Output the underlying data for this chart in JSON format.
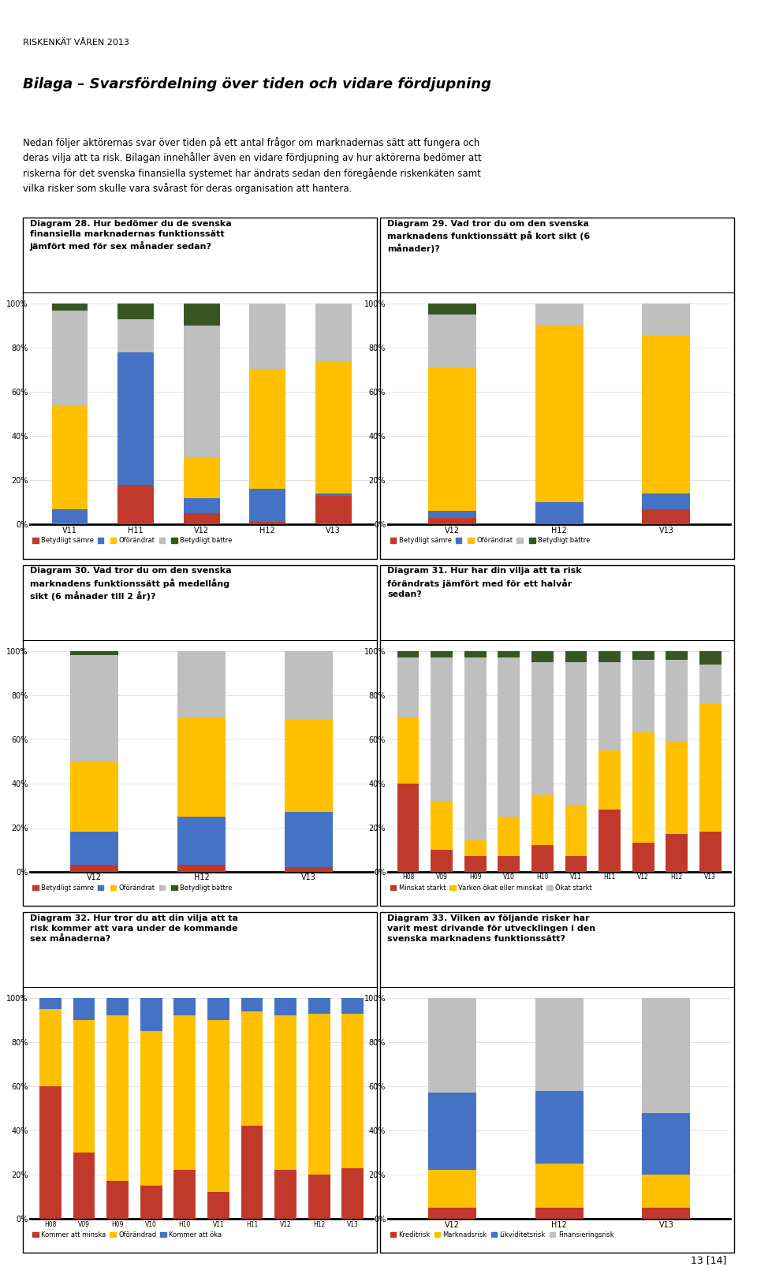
{
  "page_header": "RISKENKÄT VÅREN 2013",
  "page_title": "Bilaga – Svarsfördelning över tiden och vidare fördjupning",
  "page_intro_lines": [
    "Nedan följer aktörernas svar över tiden på ett antal frågor om marknadernas sätt att fungera och",
    "deras vilja att ta risk. Bilagan innehåller även en vidare fördjupning av hur aktörerna bedömer att",
    "riskerna för det svenska finansiella systemet har ändrats sedan den föregående riskenkäten samt",
    "vilka risker som skulle vara svårast för deras organisation att hantera."
  ],
  "page_number": "13 [14]",
  "diag28": {
    "title": "Diagram 28. Hur bedömer du de svenska\nfinansiella marknadernas funktionssätt\njämfört med för sex månader sedan?",
    "categories": [
      "V11",
      "H11",
      "V12",
      "H12",
      "V13"
    ],
    "d_red": [
      0,
      18,
      5,
      1,
      13
    ],
    "d_blue": [
      7,
      60,
      7,
      15,
      1
    ],
    "d_yell": [
      47,
      0,
      18,
      54,
      60
    ],
    "d_gray": [
      43,
      15,
      60,
      30,
      26
    ],
    "d_green": [
      3,
      7,
      10,
      0,
      0
    ],
    "legend": [
      "Betydligt sämre",
      "Oförändrat",
      "Betydligt bättre"
    ]
  },
  "diag29": {
    "title": "Diagram 29. Vad tror du om den svenska\nmarknadens funktionssätt på kort sikt (6\nmånader)?",
    "categories": [
      "V12",
      "H12",
      "V13"
    ],
    "d_red": [
      3,
      0,
      7
    ],
    "d_blue": [
      3,
      10,
      7
    ],
    "d_yell": [
      65,
      80,
      72
    ],
    "d_gray": [
      24,
      10,
      14
    ],
    "d_green": [
      5,
      0,
      0
    ],
    "legend": [
      "Betydligt sämre",
      "Oförändrat",
      "Betydligt bättre"
    ]
  },
  "diag30": {
    "title": "Diagram 30. Vad tror du om den svenska\nmarknadens funktionssätt på medellång\nsikt (6 månader till 2 år)?",
    "categories": [
      "V12",
      "H12",
      "V13"
    ],
    "d_red": [
      3,
      3,
      2
    ],
    "d_blue": [
      15,
      22,
      25
    ],
    "d_yell": [
      32,
      45,
      42
    ],
    "d_gray": [
      48,
      30,
      31
    ],
    "d_green": [
      2,
      0,
      0
    ],
    "legend": [
      "Betydligt sämre",
      "Oförändrat",
      "Betydligt bättre"
    ]
  },
  "diag31": {
    "title": "Diagram 31. Hur har din vilja att ta risk\nförändrats jämfört med för ett halvår\nsedan?",
    "categories": [
      "H08",
      "V09",
      "H09",
      "V10",
      "H10",
      "V11",
      "H11",
      "V12",
      "H12",
      "V13"
    ],
    "d_red": [
      40,
      10,
      7,
      7,
      12,
      7,
      28,
      13,
      17,
      18
    ],
    "d_yell": [
      30,
      22,
      7,
      18,
      23,
      23,
      27,
      50,
      42,
      58
    ],
    "d_gray": [
      27,
      65,
      83,
      72,
      60,
      65,
      40,
      33,
      37,
      18
    ],
    "d_green": [
      3,
      3,
      3,
      3,
      5,
      5,
      5,
      4,
      4,
      6
    ],
    "legend": [
      "Minskat starkt",
      "Varken ökat eller minskat",
      "Ökat starkt"
    ]
  },
  "diag32": {
    "title": "Diagram 32. Hur tror du att din vilja att ta\nrisk kommer att vara under de kommande\nsex månaderna?",
    "categories": [
      "H08",
      "V09",
      "H09",
      "V10",
      "H10",
      "V11",
      "H11",
      "V12",
      "H12",
      "V13"
    ],
    "d_red": [
      60,
      30,
      17,
      15,
      22,
      12,
      42,
      22,
      20,
      23
    ],
    "d_yell": [
      35,
      60,
      75,
      70,
      70,
      78,
      52,
      70,
      73,
      70
    ],
    "d_blue": [
      5,
      10,
      8,
      15,
      8,
      10,
      6,
      8,
      7,
      7
    ],
    "legend": [
      "Kommer att minska",
      "Oförändrad",
      "Kommer att öka"
    ]
  },
  "diag33": {
    "title": "Diagram 33. Vilken av följande risker har\nvarit mest drivande för utvecklingen i den\nsvenska marknadens funktionssätt?",
    "categories": [
      "V12",
      "H12",
      "V13"
    ],
    "d_red": [
      5,
      5,
      5
    ],
    "d_yell": [
      17,
      20,
      15
    ],
    "d_blue": [
      35,
      33,
      28
    ],
    "d_gray": [
      43,
      42,
      52
    ],
    "legend": [
      "Kreditrisk",
      "Marknadsrisk",
      "Likviditetsrisk",
      "Finansieringsrisk"
    ]
  },
  "RED": "#c0392b",
  "BLUE": "#4472c4",
  "YELLOW": "#ffc000",
  "GRAY": "#bfbfbf",
  "GREEN": "#375623"
}
